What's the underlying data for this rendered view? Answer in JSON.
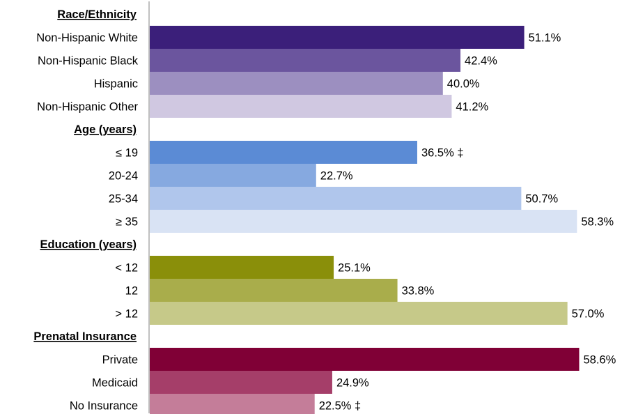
{
  "chart_data": {
    "type": "bar",
    "orientation": "horizontal",
    "title": "",
    "xlabel": "",
    "ylabel": "",
    "xlim": [
      0,
      60
    ],
    "grid": false,
    "groups": [
      {
        "heading": "Race/Ethnicity",
        "items": [
          {
            "label": "Non-Hispanic White",
            "value": 51.1,
            "value_label": "51.1%",
            "color": "#3b1f7a"
          },
          {
            "label": "Non-Hispanic Black",
            "value": 42.4,
            "value_label": "42.4%",
            "color": "#6b559e"
          },
          {
            "label": "Hispanic",
            "value": 40.0,
            "value_label": "40.0%",
            "color": "#9c8fc0"
          },
          {
            "label": "Non-Hispanic Other",
            "value": 41.2,
            "value_label": "41.2%",
            "color": "#d0c8e1"
          }
        ]
      },
      {
        "heading": "Age (years)",
        "items": [
          {
            "label": "≤ 19",
            "value": 36.5,
            "value_label": "36.5% ‡",
            "color": "#5b8bd5"
          },
          {
            "label": "20-24",
            "value": 22.7,
            "value_label": "22.7%",
            "color": "#86a9e0"
          },
          {
            "label": "25-34",
            "value": 50.7,
            "value_label": "50.7%",
            "color": "#b0c6ec"
          },
          {
            "label": "≥ 35",
            "value": 58.3,
            "value_label": "58.3%",
            "color": "#d9e3f4"
          }
        ]
      },
      {
        "heading": "Education (years)",
        "items": [
          {
            "label": "< 12",
            "value": 25.1,
            "value_label": "25.1%",
            "color": "#8a8f0a"
          },
          {
            "label": "12",
            "value": 33.8,
            "value_label": "33.8%",
            "color": "#a9ad4b"
          },
          {
            "label": "> 12",
            "value": 57.0,
            "value_label": "57.0%",
            "color": "#c6c989"
          }
        ]
      },
      {
        "heading": "Prenatal Insurance",
        "items": [
          {
            "label": "Private",
            "value": 58.6,
            "value_label": "58.6%",
            "color": "#800036"
          },
          {
            "label": "Medicaid",
            "value": 24.9,
            "value_label": "24.9%",
            "color": "#a53e69"
          },
          {
            "label": "No Insurance",
            "value": 22.5,
            "value_label": "22.5% ‡",
            "color": "#c47d99"
          }
        ]
      }
    ]
  }
}
